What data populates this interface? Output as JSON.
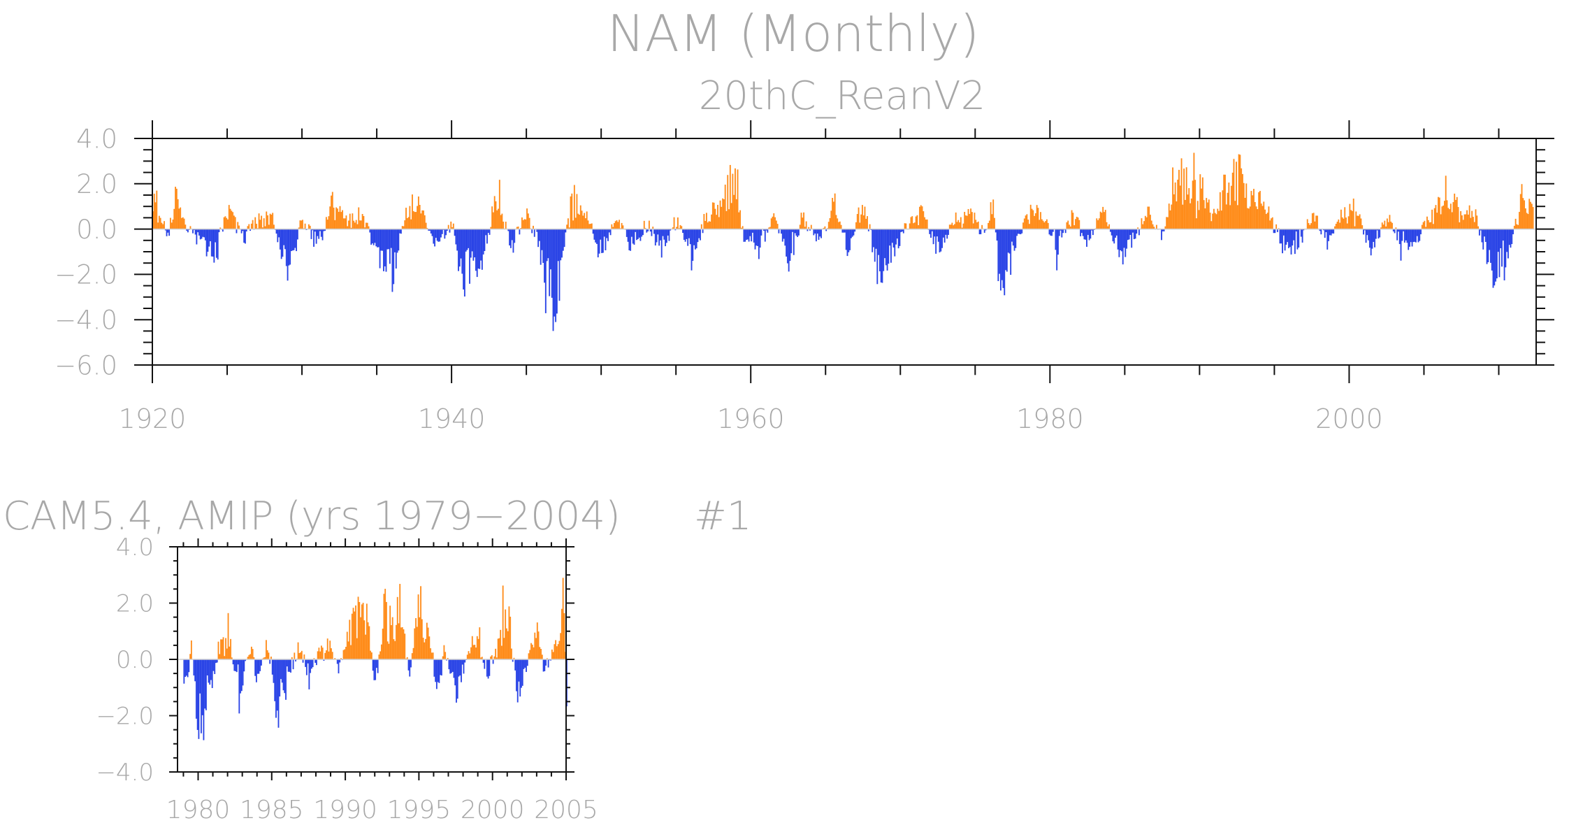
{
  "figure": {
    "title": "NAM (Monthly)",
    "panel_title_suffix": "#1"
  },
  "colors": {
    "positive": "#ff8c1a",
    "negative": "#2a44e6",
    "label": "#a8a8a8",
    "axis": "#111111"
  },
  "chart_data": [
    {
      "id": "reanalysis",
      "type": "bar",
      "subtitle": "20thC_ReanV2",
      "xlabel": "",
      "ylabel": "",
      "xlim": [
        1920,
        2012.5
      ],
      "ylim": [
        -6.0,
        4.0
      ],
      "y_ticks": [
        "4.0",
        "2.0",
        "0.0",
        "−2.0",
        "−4.0",
        "−6.0"
      ],
      "x_ticks": [
        "1920",
        "1940",
        "1960",
        "1980",
        "2000"
      ],
      "grid": false,
      "series_knots": [
        [
          1920.0,
          2.4
        ],
        [
          1920.5,
          0.8
        ],
        [
          1921.0,
          -0.4
        ],
        [
          1921.5,
          1.6
        ],
        [
          1922.0,
          0.5
        ],
        [
          1923.0,
          -0.6
        ],
        [
          1924.2,
          -1.5
        ],
        [
          1925.0,
          1.3
        ],
        [
          1926.0,
          -0.6
        ],
        [
          1927.0,
          0.6
        ],
        [
          1928.0,
          0.9
        ],
        [
          1929.0,
          -2.5
        ],
        [
          1930.0,
          0.6
        ],
        [
          1931.0,
          -0.9
        ],
        [
          1932.0,
          1.5
        ],
        [
          1933.0,
          0.5
        ],
        [
          1934.0,
          0.7
        ],
        [
          1935.0,
          -1.4
        ],
        [
          1936.0,
          -2.5
        ],
        [
          1937.0,
          1.4
        ],
        [
          1938.0,
          1.1
        ],
        [
          1939.0,
          -1.0
        ],
        [
          1940.0,
          0.3
        ],
        [
          1940.8,
          -2.6
        ],
        [
          1942.0,
          -1.6
        ],
        [
          1943.0,
          1.6
        ],
        [
          1944.0,
          -0.8
        ],
        [
          1945.0,
          0.9
        ],
        [
          1946.0,
          -1.6
        ],
        [
          1946.8,
          -4.6
        ],
        [
          1948.0,
          1.6
        ],
        [
          1949.0,
          0.6
        ],
        [
          1950.0,
          -1.4
        ],
        [
          1951.0,
          0.8
        ],
        [
          1952.0,
          -1.2
        ],
        [
          1953.0,
          0.4
        ],
        [
          1954.0,
          -1.0
        ],
        [
          1955.0,
          0.5
        ],
        [
          1956.0,
          -1.4
        ],
        [
          1957.0,
          0.7
        ],
        [
          1958.0,
          1.3
        ],
        [
          1958.8,
          2.8
        ],
        [
          1959.5,
          -0.5
        ],
        [
          1960.5,
          -1.2
        ],
        [
          1961.5,
          0.9
        ],
        [
          1962.5,
          -1.6
        ],
        [
          1963.5,
          0.8
        ],
        [
          1964.5,
          -1.0
        ],
        [
          1965.5,
          1.0
        ],
        [
          1966.5,
          -1.1
        ],
        [
          1967.5,
          1.6
        ],
        [
          1968.5,
          -2.3
        ],
        [
          1969.5,
          -1.2
        ],
        [
          1970.5,
          0.3
        ],
        [
          1971.5,
          1.0
        ],
        [
          1972.5,
          -1.3
        ],
        [
          1973.5,
          0.4
        ],
        [
          1974.5,
          0.9
        ],
        [
          1975.5,
          -0.3
        ],
        [
          1976.2,
          1.4
        ],
        [
          1976.5,
          -3.0
        ],
        [
          1977.5,
          -1.1
        ],
        [
          1978.5,
          1.2
        ],
        [
          1979.5,
          0.7
        ],
        [
          1980.5,
          -1.0
        ],
        [
          1981.5,
          0.8
        ],
        [
          1982.5,
          -0.9
        ],
        [
          1983.5,
          1.0
        ],
        [
          1984.5,
          -1.2
        ],
        [
          1985.5,
          -0.8
        ],
        [
          1986.5,
          0.8
        ],
        [
          1987.5,
          -0.4
        ],
        [
          1988.3,
          3.0
        ],
        [
          1989.3,
          2.4
        ],
        [
          1990.3,
          1.6
        ],
        [
          1991.0,
          0.9
        ],
        [
          1992.3,
          3.3
        ],
        [
          1993.3,
          1.8
        ],
        [
          1994.3,
          1.2
        ],
        [
          1995.5,
          -0.8
        ],
        [
          1996.5,
          -1.0
        ],
        [
          1997.5,
          0.8
        ],
        [
          1998.5,
          -0.8
        ],
        [
          1999.5,
          0.9
        ],
        [
          2000.5,
          1.0
        ],
        [
          2001.5,
          -1.2
        ],
        [
          2002.5,
          0.6
        ],
        [
          2003.5,
          -0.7
        ],
        [
          2004.5,
          -0.6
        ],
        [
          2005.5,
          1.0
        ],
        [
          2006.5,
          2.2
        ],
        [
          2007.5,
          1.0
        ],
        [
          2008.5,
          0.6
        ],
        [
          2009.6,
          -2.8
        ],
        [
          2010.5,
          -1.6
        ],
        [
          2011.5,
          1.6
        ],
        [
          2012.3,
          1.8
        ]
      ]
    },
    {
      "id": "cam54",
      "type": "bar",
      "subtitle": "CAM5.4, AMIP (yrs 1979−2004)",
      "xlabel": "",
      "ylabel": "",
      "xlim": [
        1978.6,
        2005.0
      ],
      "ylim": [
        -4.0,
        4.0
      ],
      "y_ticks": [
        "4.0",
        "2.0",
        "0.0",
        "−2.0",
        "−4.0"
      ],
      "x_ticks": [
        "1980",
        "1985",
        "1990",
        "1995",
        "2000",
        "2005"
      ],
      "grid": false,
      "series_knots": [
        [
          1979.0,
          -1.3
        ],
        [
          1979.5,
          0.5
        ],
        [
          1980.0,
          -2.8
        ],
        [
          1980.8,
          -1.5
        ],
        [
          1981.5,
          0.9
        ],
        [
          1982.0,
          1.2
        ],
        [
          1982.8,
          -1.6
        ],
        [
          1983.5,
          0.6
        ],
        [
          1984.0,
          -1.0
        ],
        [
          1984.6,
          1.0
        ],
        [
          1985.3,
          -2.2
        ],
        [
          1986.0,
          -1.0
        ],
        [
          1986.8,
          0.6
        ],
        [
          1987.5,
          -0.8
        ],
        [
          1988.3,
          0.6
        ],
        [
          1988.9,
          0.4
        ],
        [
          1989.5,
          -0.5
        ],
        [
          1990.2,
          1.4
        ],
        [
          1990.9,
          2.2
        ],
        [
          1991.5,
          1.6
        ],
        [
          1992.0,
          -1.3
        ],
        [
          1992.6,
          2.4
        ],
        [
          1993.2,
          1.2
        ],
        [
          1993.8,
          2.3
        ],
        [
          1994.3,
          -0.8
        ],
        [
          1995.0,
          2.6
        ],
        [
          1995.6,
          1.2
        ],
        [
          1996.2,
          -1.0
        ],
        [
          1996.8,
          0.4
        ],
        [
          1997.6,
          -1.4
        ],
        [
          1998.3,
          0.4
        ],
        [
          1999.0,
          1.0
        ],
        [
          1999.6,
          -0.6
        ],
        [
          2000.3,
          0.5
        ],
        [
          2001.0,
          1.9
        ],
        [
          2001.7,
          -1.6
        ],
        [
          2002.5,
          0.3
        ],
        [
          2003.0,
          1.5
        ],
        [
          2003.5,
          -0.6
        ],
        [
          2004.2,
          0.6
        ],
        [
          2004.8,
          2.5
        ],
        [
          2005.0,
          -1.4
        ]
      ]
    }
  ]
}
